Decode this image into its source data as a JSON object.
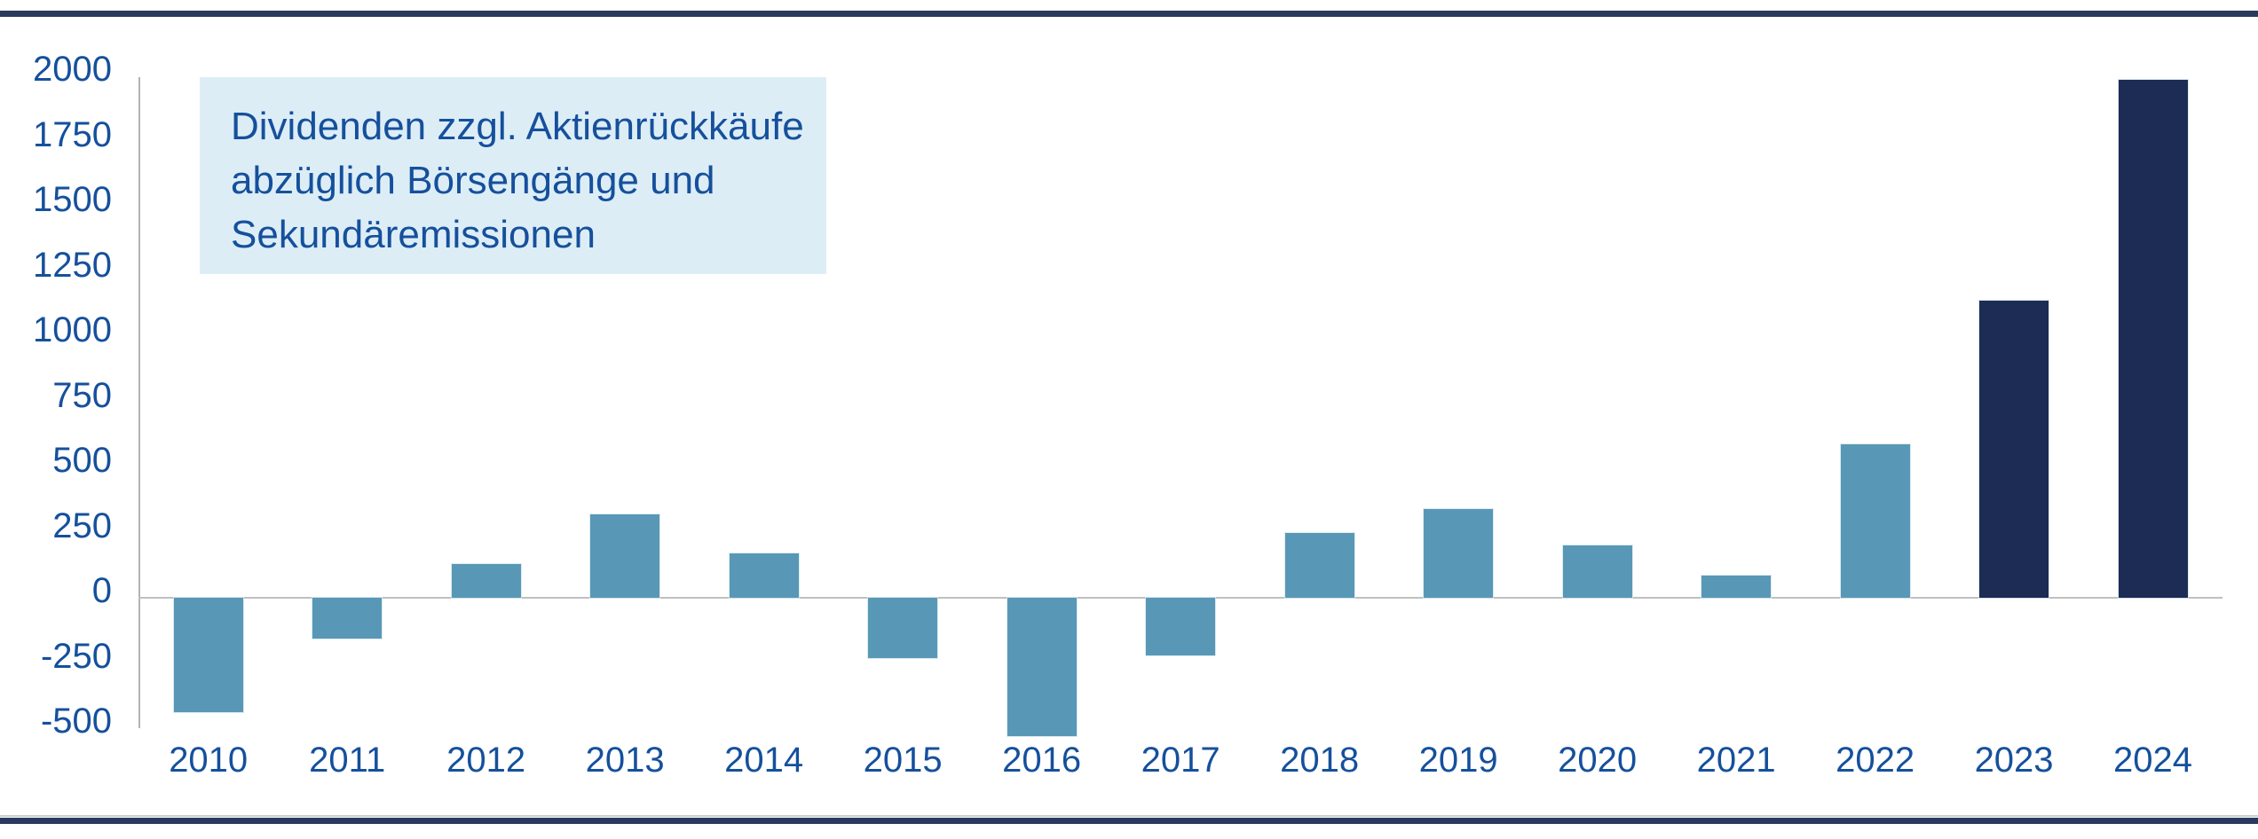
{
  "annotation": {
    "lines": {
      "0": "Dividenden zzgl. Aktienrückkäufe",
      "1": "abzüglich Börsengänge und",
      "2": "Sekundäremissionen"
    }
  },
  "colors": {
    "bar_default": "#5898b6",
    "bar_highlight": "#1d2c54",
    "text_blue": "#15509c",
    "annotation_bg": "#ddedf6",
    "band_navy": "#2a3a5e",
    "axis_line": "#b3b3b3",
    "zero_line": "#bfbfbf"
  },
  "chart_data": {
    "type": "bar",
    "categories": [
      "2010",
      "2011",
      "2012",
      "2013",
      "2014",
      "2015",
      "2016",
      "2017",
      "2018",
      "2019",
      "2020",
      "2021",
      "2022",
      "2023",
      "2024"
    ],
    "values": [
      -440,
      -155,
      130,
      320,
      170,
      -230,
      -530,
      -220,
      250,
      340,
      200,
      85,
      590,
      1140,
      1985
    ],
    "highlight_categories": [
      "2023",
      "2024"
    ],
    "title": "",
    "xlabel": "",
    "ylabel": "",
    "ylim": [
      -500,
      2000
    ],
    "ytick_step": 250,
    "ytick_labels": [
      "2000",
      "1750",
      "1500",
      "1250",
      "1000",
      "750",
      "500",
      "250",
      "0",
      "-250",
      "-500"
    ],
    "grid": "zero-line-only",
    "legend": "none",
    "annotation_text": "Dividenden zzgl. Aktienrückkäufe abzüglich Börsengänge und Sekundäremissionen"
  }
}
